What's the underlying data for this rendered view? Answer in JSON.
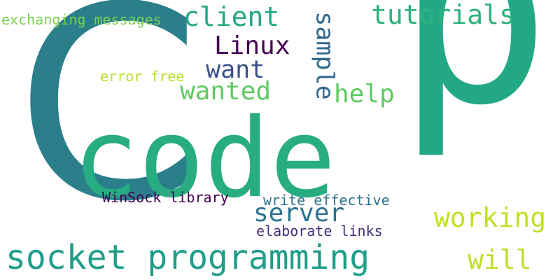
{
  "word_cloud": {
    "words": [
      {
        "text": "C",
        "color": "#2a7f8a"
      },
      {
        "text": "code",
        "color": "#27ad81"
      },
      {
        "text": "p",
        "color": "#22a884"
      },
      {
        "text": "socket programming",
        "color": "#1f9e89"
      },
      {
        "text": "tutorials",
        "color": "#2db27d"
      },
      {
        "text": "client",
        "color": "#22a884"
      },
      {
        "text": "Linux",
        "color": "#440154"
      },
      {
        "text": "want",
        "color": "#3b528b"
      },
      {
        "text": "wanted",
        "color": "#5ec962"
      },
      {
        "text": "sample",
        "color": "#31688e"
      },
      {
        "text": "help",
        "color": "#5ec962"
      },
      {
        "text": "server",
        "color": "#2c728e"
      },
      {
        "text": "working",
        "color": "#c2df23"
      },
      {
        "text": "will",
        "color": "#bddf26"
      },
      {
        "text": "exchanging messages",
        "color": "#7ad151"
      },
      {
        "text": "error free",
        "color": "#b5de2b"
      },
      {
        "text": "WinSock library",
        "color": "#440154"
      },
      {
        "text": "write effective",
        "color": "#2c728e"
      },
      {
        "text": "elaborate links",
        "color": "#472c7a"
      }
    ]
  }
}
